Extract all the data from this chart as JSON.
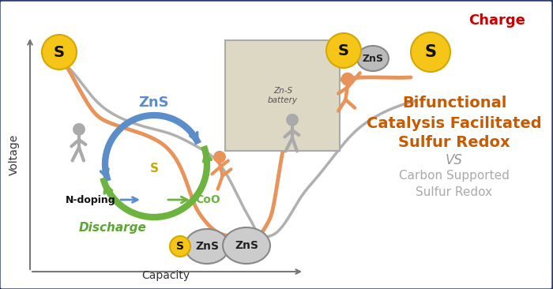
{
  "fig_width": 7.0,
  "fig_height": 3.66,
  "dpi": 100,
  "bg_color": "#ffffff",
  "border_color": "#2b3a6b",
  "orange_color": "#e8935a",
  "gray_color": "#b0b0b0",
  "green_color": "#6db33f",
  "blue_color": "#5b8dc8",
  "yellow_color": "#f5c518",
  "yellow_edge": "#d4a800",
  "text_orange": "#c85a00",
  "text_green": "#5aa832",
  "text_blue": "#4472c4",
  "text_red": "#cc0000",
  "title_line1": "Bifunctional",
  "title_line2": "Catalysis Facilitated",
  "title_line3": "Sulfur Redox",
  "vs_text": "VS",
  "subtitle_line1": "Carbon Supported",
  "subtitle_line2": "Sulfur Redox",
  "charge_text": "Charge",
  "discharge_text": "Discharge",
  "xlabel": "Capacity",
  "ylabel": "Voltage",
  "zns_text": "ZnS",
  "s_text": "S",
  "ndoping_text": "N-doping",
  "coo_text": "CoO"
}
